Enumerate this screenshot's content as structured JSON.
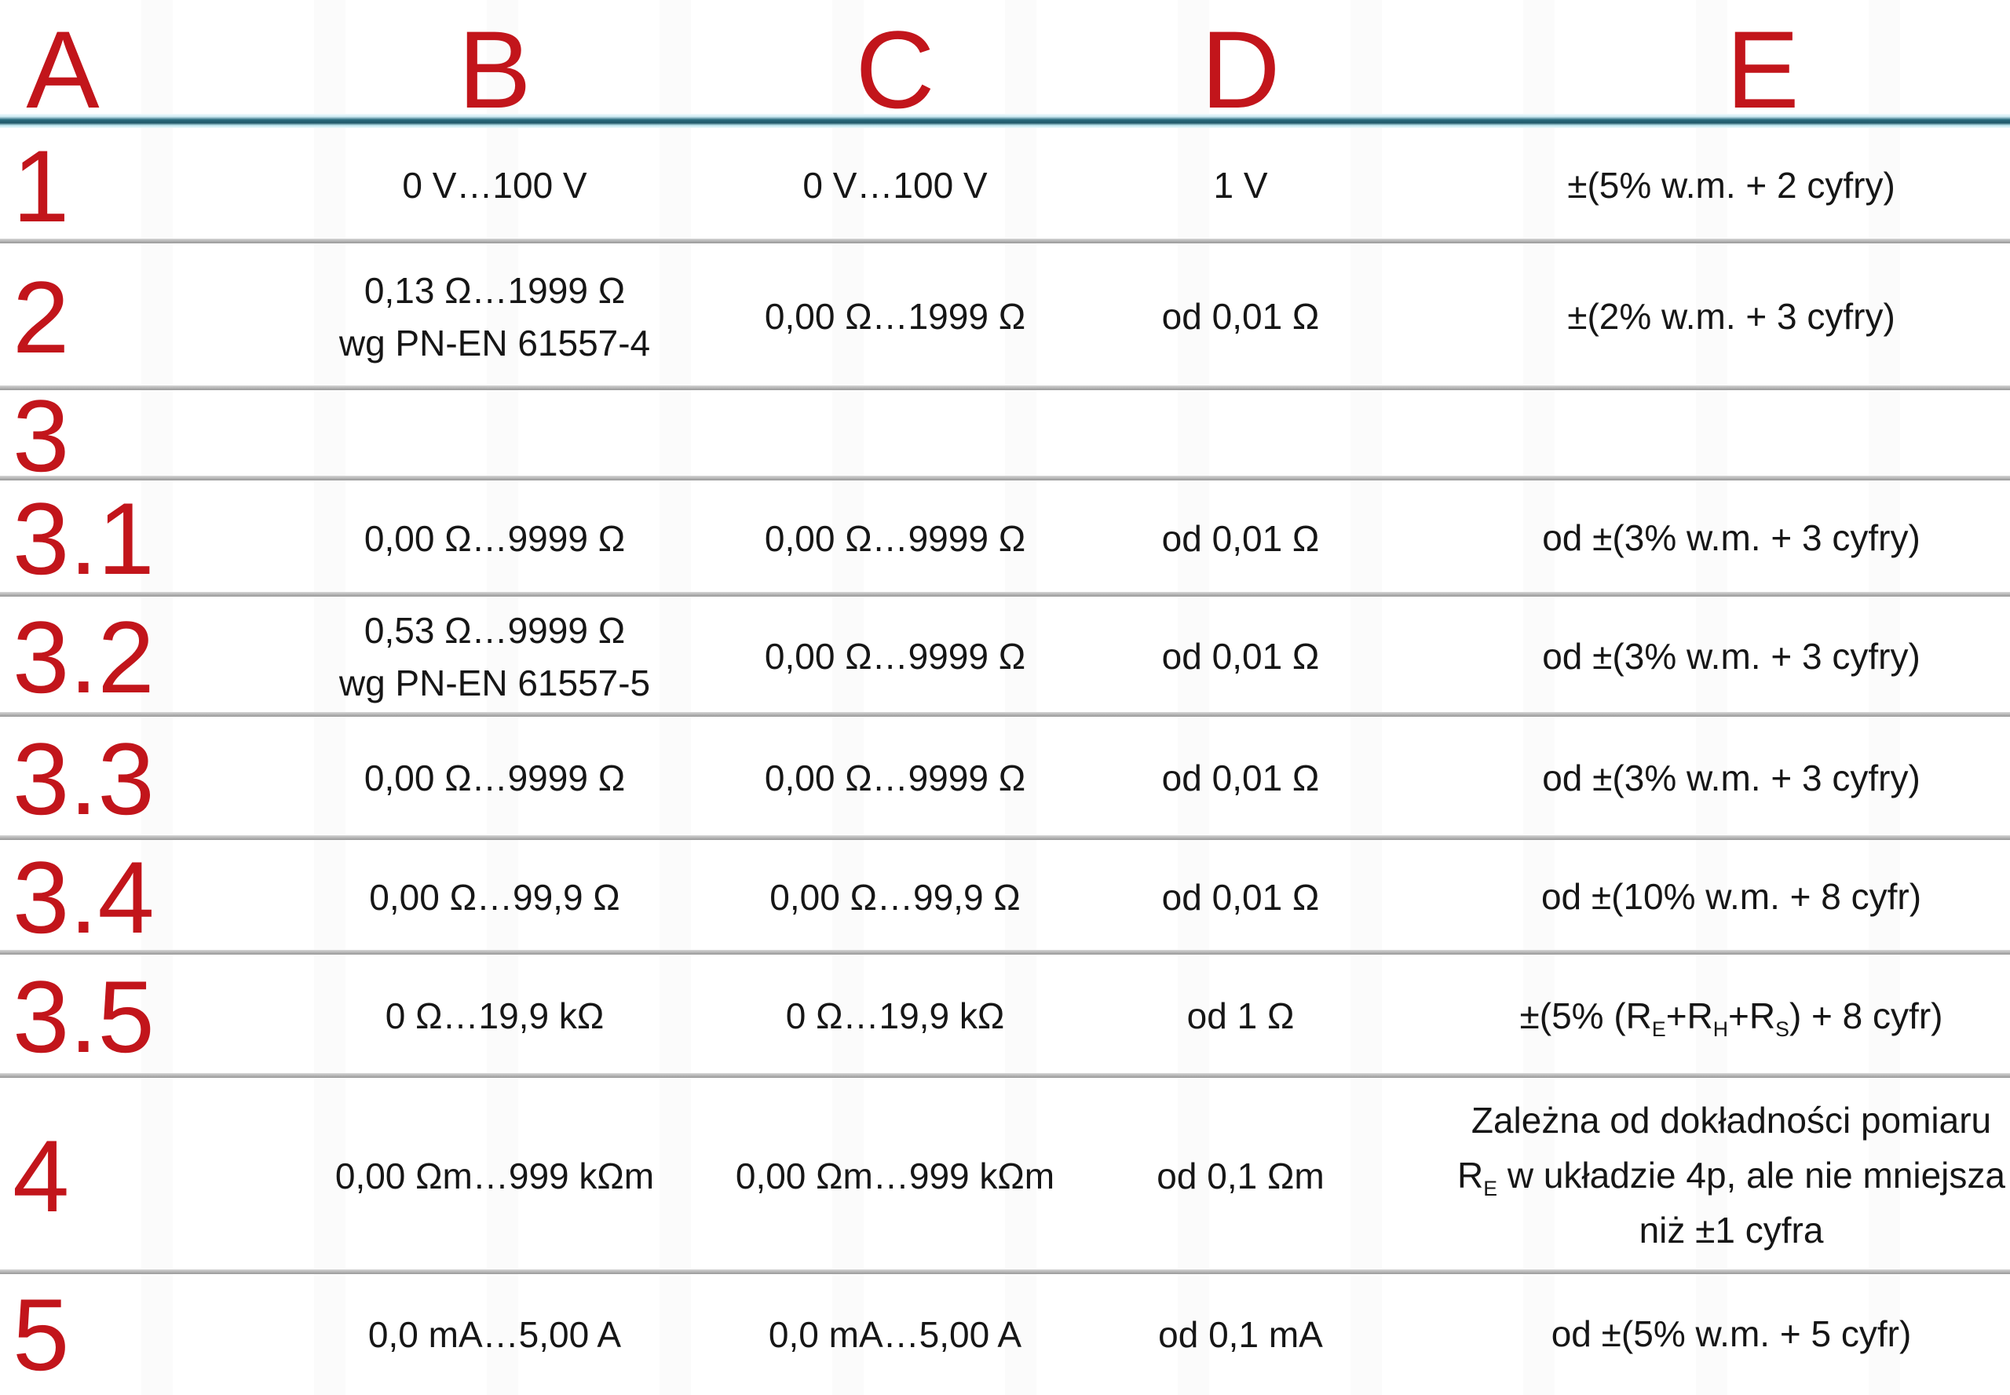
{
  "colors": {
    "accent_red": "#c2151b",
    "header_divider_teal": "#2a6b7e",
    "row_separator_gray": "#a6a6a6"
  },
  "table": {
    "columns": [
      {
        "label": "A"
      },
      {
        "label": "B"
      },
      {
        "label": "C"
      },
      {
        "label": "D"
      },
      {
        "label": "E"
      }
    ],
    "rows": [
      {
        "a": "1",
        "b": [
          "0 V…100 V"
        ],
        "c": [
          "0 V…100 V"
        ],
        "d": [
          "1 V"
        ],
        "e": [
          [
            {
              "t": "±(5% w.m. + 2 cyfry)"
            }
          ]
        ]
      },
      {
        "a": "2",
        "b": [
          "0,13 Ω…1999 Ω",
          "wg PN-EN 61557-4"
        ],
        "c": [
          "0,00 Ω…1999 Ω"
        ],
        "d": [
          "od 0,01 Ω"
        ],
        "e": [
          [
            {
              "t": "±(2% w.m. + 3 cyfry)"
            }
          ]
        ]
      },
      {
        "a": "3",
        "b": [],
        "c": [],
        "d": [],
        "e": []
      },
      {
        "a": "3.1",
        "b": [
          "0,00 Ω…9999 Ω"
        ],
        "c": [
          "0,00 Ω…9999 Ω"
        ],
        "d": [
          "od 0,01 Ω"
        ],
        "e": [
          [
            {
              "t": "od ±(3% w.m. + 3 cyfry)"
            }
          ]
        ]
      },
      {
        "a": "3.2",
        "b": [
          "0,53 Ω…9999 Ω",
          "wg PN-EN 61557-5"
        ],
        "c": [
          "0,00 Ω…9999 Ω"
        ],
        "d": [
          "od 0,01 Ω"
        ],
        "e": [
          [
            {
              "t": "od ±(3% w.m. + 3 cyfry)"
            }
          ]
        ]
      },
      {
        "a": "3.3",
        "b": [
          "0,00 Ω…9999 Ω"
        ],
        "c": [
          "0,00 Ω…9999 Ω"
        ],
        "d": [
          "od 0,01 Ω"
        ],
        "e": [
          [
            {
              "t": "od ±(3% w.m. + 3 cyfry)"
            }
          ]
        ]
      },
      {
        "a": "3.4",
        "b": [
          "0,00 Ω…99,9 Ω"
        ],
        "c": [
          "0,00 Ω…99,9 Ω"
        ],
        "d": [
          "od 0,01 Ω"
        ],
        "e": [
          [
            {
              "t": "od ±(10% w.m. + 8 cyfr)"
            }
          ]
        ]
      },
      {
        "a": "3.5",
        "b": [
          "0 Ω…19,9 kΩ"
        ],
        "c": [
          "0 Ω…19,9 kΩ"
        ],
        "d": [
          "od 1 Ω"
        ],
        "e": [
          [
            {
              "t": "±(5% (R"
            },
            {
              "sub": "E"
            },
            {
              "t": "+R"
            },
            {
              "sub": "H"
            },
            {
              "t": "+R"
            },
            {
              "sub": "S"
            },
            {
              "t": ") + 8 cyfr)"
            }
          ]
        ]
      },
      {
        "a": "4",
        "b": [
          "0,00 Ωm…999 kΩm"
        ],
        "c": [
          "0,00 Ωm…999 kΩm"
        ],
        "d": [
          "od 0,1 Ωm"
        ],
        "e": [
          [
            {
              "t": "Zależna od dokładności pomiaru"
            }
          ],
          [
            {
              "t": "R"
            },
            {
              "sub": "E"
            },
            {
              "t": " w układzie 4p, ale nie mniejsza"
            }
          ],
          [
            {
              "t": "niż ±1 cyfra"
            }
          ]
        ]
      },
      {
        "a": "5",
        "b": [
          "0,0 mA…5,00 A"
        ],
        "c": [
          "0,0 mA…5,00 A"
        ],
        "d": [
          "od 0,1 mA"
        ],
        "e": [
          [
            {
              "t": "od ±(5% w.m. + 5 cyfr)"
            }
          ]
        ]
      }
    ]
  }
}
